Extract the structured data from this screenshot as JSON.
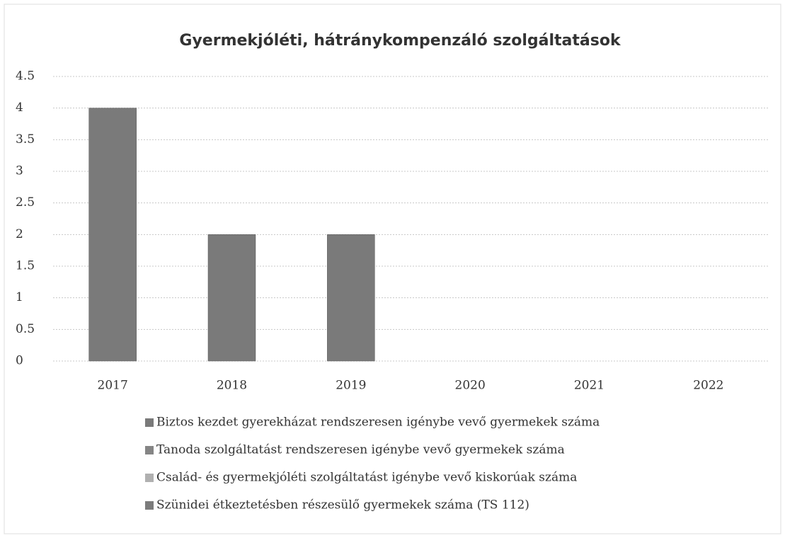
{
  "chart_data": {
    "type": "bar",
    "title": "Gyermekjóléti, hátránykompenzáló szolgáltatások",
    "categories": [
      "2017",
      "2018",
      "2019",
      "2020",
      "2021",
      "2022"
    ],
    "series": [
      {
        "name": "Biztos kezdet gyerekházat rendszeresen igénybe vevő gyermekek száma",
        "color": "#7a7a7a",
        "values": [
          4,
          2,
          2,
          null,
          null,
          null
        ]
      },
      {
        "name": "Tanoda szolgáltatást rendszeresen igénybe vevő gyermekek száma",
        "color": "#858585",
        "values": [
          null,
          null,
          null,
          null,
          null,
          null
        ]
      },
      {
        "name": "Család- és gyermekjóléti szolgáltatást igénybe vevő kiskorúak száma",
        "color": "#b0b0b0",
        "values": [
          null,
          null,
          null,
          null,
          null,
          null
        ]
      },
      {
        "name": "Szünidei étkeztetésben részesülő gyermekek száma (TS 112)",
        "color": "#7c7c7c",
        "values": [
          null,
          null,
          null,
          null,
          null,
          null
        ]
      }
    ],
    "ylim": [
      0,
      4.5
    ],
    "yticks": [
      0,
      0.5,
      1,
      1.5,
      2,
      2.5,
      3,
      3.5,
      4,
      4.5
    ],
    "grid": true
  }
}
